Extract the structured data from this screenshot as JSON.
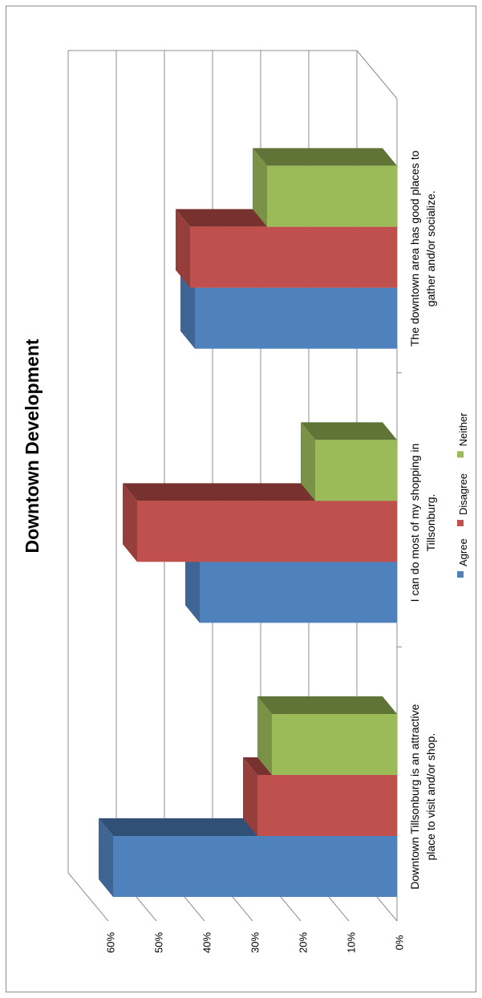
{
  "chart_data": {
    "type": "bar",
    "title": "Downtown Development",
    "categories": [
      [
        "Downtown Tillsonburg is an attractive",
        "place to visit and/or shop."
      ],
      [
        "I can do most of my shopping in",
        "Tillsonburg."
      ],
      [
        "The downtown area has good places to",
        "gather and/or socialize."
      ]
    ],
    "series": [
      {
        "name": "Agree",
        "values": [
          0.59,
          0.41,
          0.42
        ],
        "color": "#4F81BD"
      },
      {
        "name": "Disagree",
        "values": [
          0.29,
          0.54,
          0.43
        ],
        "color": "#C0504D"
      },
      {
        "name": "Neither",
        "values": [
          0.26,
          0.17,
          0.27
        ],
        "color": "#9BBB59"
      }
    ],
    "ylim": [
      0,
      0.6
    ],
    "yticks": [
      "0%",
      "10%",
      "20%",
      "30%",
      "40%",
      "50%",
      "60%"
    ],
    "grid": true,
    "legend": "bottom",
    "orientation": "rotated-90",
    "style": "3d-clustered-column"
  }
}
